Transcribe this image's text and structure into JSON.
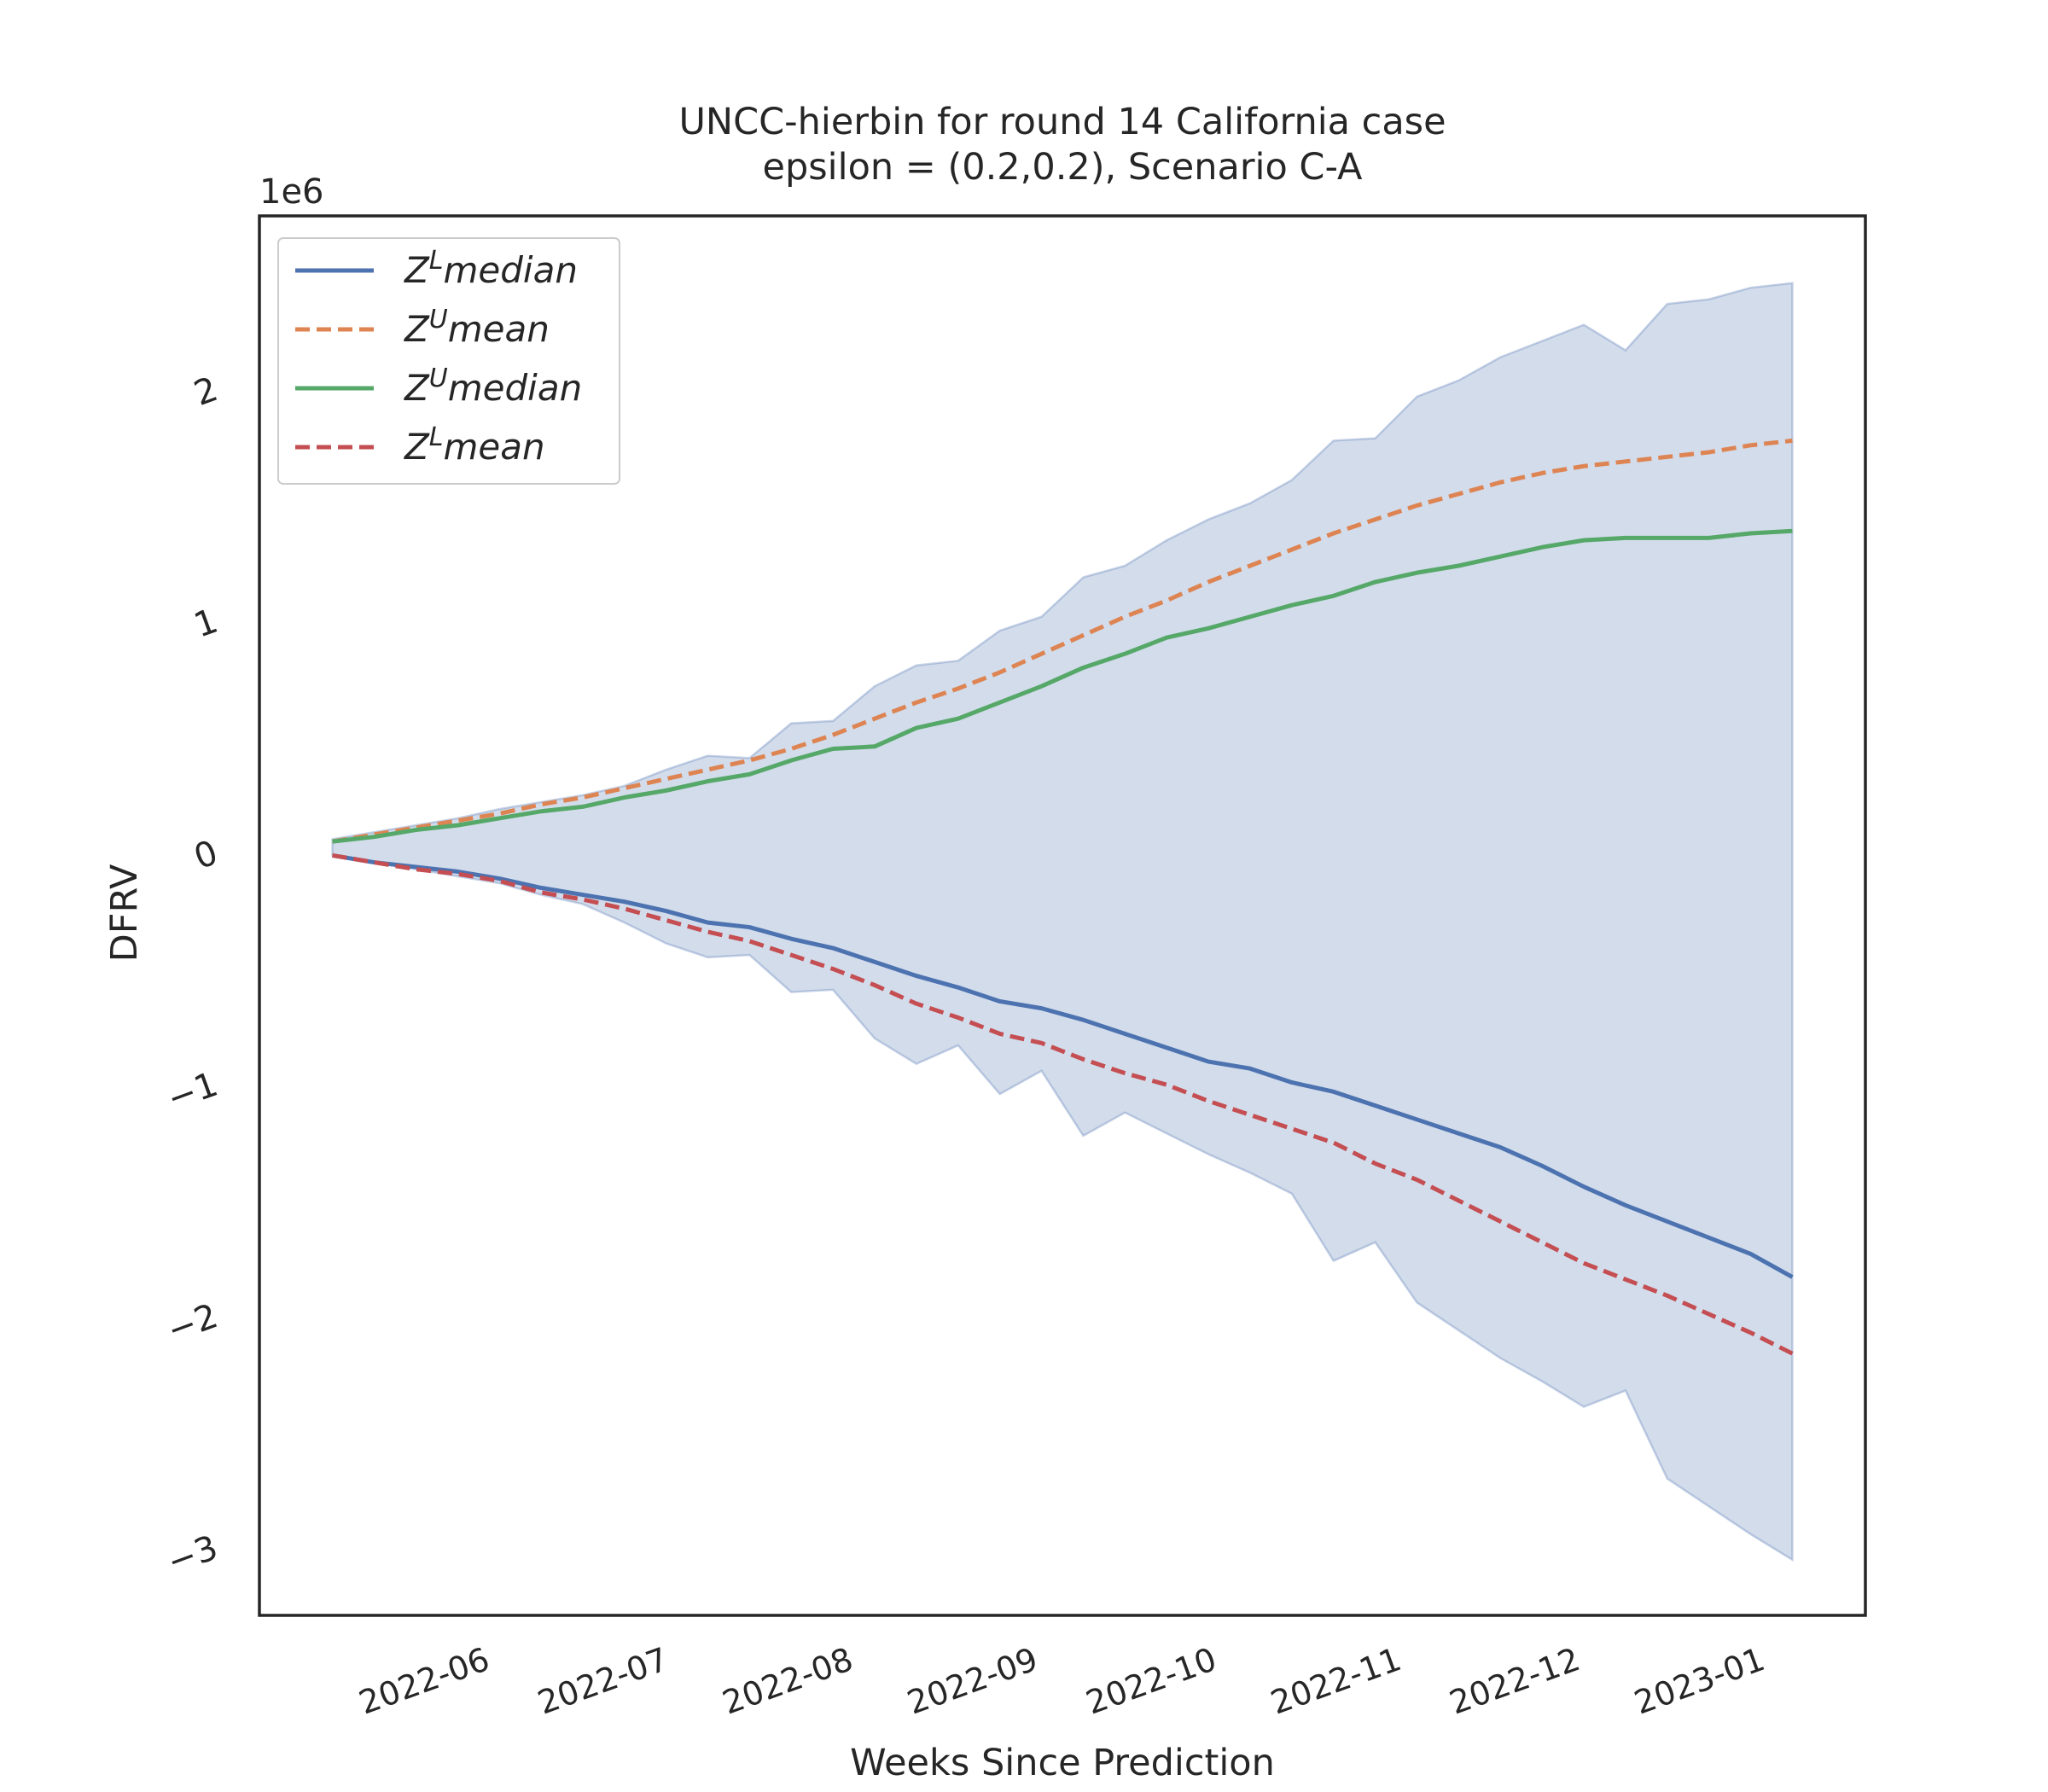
{
  "chart_data": {
    "type": "line",
    "title": [
      "UNCC-hierbin for round 14 California  case",
      "epsilon = (0.2,0.2), Scenario C-A"
    ],
    "xlabel": "Weeks Since Prediction",
    "ylabel": "DFRV",
    "y_offset_label": "1e6",
    "x": [
      0,
      1,
      2,
      3,
      4,
      5,
      6,
      7,
      8,
      9,
      10,
      11,
      12,
      13,
      14,
      15,
      16,
      17,
      18,
      19,
      20,
      21,
      22,
      23,
      24,
      25,
      26,
      27,
      28,
      29,
      30,
      31,
      32,
      33,
      34,
      35
    ],
    "xlim": [
      -1.75,
      36.75
    ],
    "xticks": [
      {
        "value": 3.571,
        "label": "2022-06"
      },
      {
        "value": 7.857,
        "label": "2022-07"
      },
      {
        "value": 12.286,
        "label": "2022-08"
      },
      {
        "value": 16.714,
        "label": "2022-09"
      },
      {
        "value": 21.0,
        "label": "2022-10"
      },
      {
        "value": 25.429,
        "label": "2022-11"
      },
      {
        "value": 29.714,
        "label": "2022-12"
      },
      {
        "value": 34.143,
        "label": "2023-01"
      }
    ],
    "ylim": [
      -3.29,
      2.75
    ],
    "yticks": [
      {
        "value": -3,
        "label": "−3"
      },
      {
        "value": -2,
        "label": "−2"
      },
      {
        "value": -1,
        "label": "−1"
      },
      0,
      1,
      2
    ],
    "legend": "upper left",
    "band": {
      "color": "#4c72b0",
      "upper": [
        0.06,
        0.09,
        0.12,
        0.15,
        0.19,
        0.22,
        0.25,
        0.29,
        0.36,
        0.42,
        0.41,
        0.56,
        0.57,
        0.72,
        0.81,
        0.83,
        0.96,
        1.02,
        1.19,
        1.24,
        1.35,
        1.44,
        1.51,
        1.61,
        1.78,
        1.79,
        1.97,
        2.04,
        2.14,
        2.21,
        2.28,
        2.17,
        2.37,
        2.39,
        2.44,
        2.46
      ],
      "lower": [
        -0.01,
        -0.04,
        -0.07,
        -0.1,
        -0.13,
        -0.18,
        -0.22,
        -0.3,
        -0.39,
        -0.45,
        -0.44,
        -0.6,
        -0.59,
        -0.8,
        -0.91,
        -0.83,
        -1.04,
        -0.94,
        -1.22,
        -1.12,
        -1.21,
        -1.3,
        -1.38,
        -1.47,
        -1.76,
        -1.68,
        -1.94,
        -2.06,
        -2.18,
        -2.28,
        -2.39,
        -2.32,
        -2.7,
        -2.82,
        -2.94,
        -3.05
      ]
    },
    "series": [
      {
        "name": "ZLmedian",
        "color": "#4c72b0",
        "dash": false,
        "values": [
          -0.01,
          -0.04,
          -0.06,
          -0.08,
          -0.11,
          -0.15,
          -0.18,
          -0.21,
          -0.25,
          -0.3,
          -0.32,
          -0.37,
          -0.41,
          -0.47,
          -0.53,
          -0.58,
          -0.64,
          -0.67,
          -0.72,
          -0.78,
          -0.84,
          -0.9,
          -0.93,
          -0.99,
          -1.03,
          -1.09,
          -1.15,
          -1.21,
          -1.27,
          -1.35,
          -1.44,
          -1.52,
          -1.59,
          -1.66,
          -1.73,
          -1.83
        ]
      },
      {
        "name": "ZUmean",
        "color": "#dd8452",
        "dash": true,
        "values": [
          0.05,
          0.08,
          0.11,
          0.14,
          0.17,
          0.21,
          0.24,
          0.28,
          0.32,
          0.36,
          0.4,
          0.45,
          0.51,
          0.58,
          0.65,
          0.71,
          0.78,
          0.86,
          0.94,
          1.02,
          1.09,
          1.17,
          1.24,
          1.31,
          1.38,
          1.44,
          1.5,
          1.55,
          1.6,
          1.64,
          1.67,
          1.69,
          1.71,
          1.73,
          1.76,
          1.78
        ]
      },
      {
        "name": "ZUmedian",
        "color": "#55a868",
        "dash": false,
        "values": [
          0.05,
          0.07,
          0.1,
          0.12,
          0.15,
          0.18,
          0.2,
          0.24,
          0.27,
          0.31,
          0.34,
          0.4,
          0.45,
          0.46,
          0.54,
          0.58,
          0.65,
          0.72,
          0.8,
          0.86,
          0.93,
          0.97,
          1.02,
          1.07,
          1.11,
          1.17,
          1.21,
          1.24,
          1.28,
          1.32,
          1.35,
          1.36,
          1.36,
          1.36,
          1.38,
          1.39
        ]
      },
      {
        "name": "ZLmean",
        "color": "#c44e52",
        "dash": true,
        "values": [
          -0.01,
          -0.04,
          -0.07,
          -0.09,
          -0.12,
          -0.17,
          -0.2,
          -0.24,
          -0.29,
          -0.34,
          -0.38,
          -0.44,
          -0.5,
          -0.57,
          -0.65,
          -0.71,
          -0.78,
          -0.82,
          -0.89,
          -0.95,
          -1.0,
          -1.07,
          -1.13,
          -1.19,
          -1.25,
          -1.34,
          -1.41,
          -1.5,
          -1.59,
          -1.68,
          -1.77,
          -1.84,
          -1.91,
          -1.99,
          -2.07,
          -2.16
        ]
      }
    ]
  }
}
